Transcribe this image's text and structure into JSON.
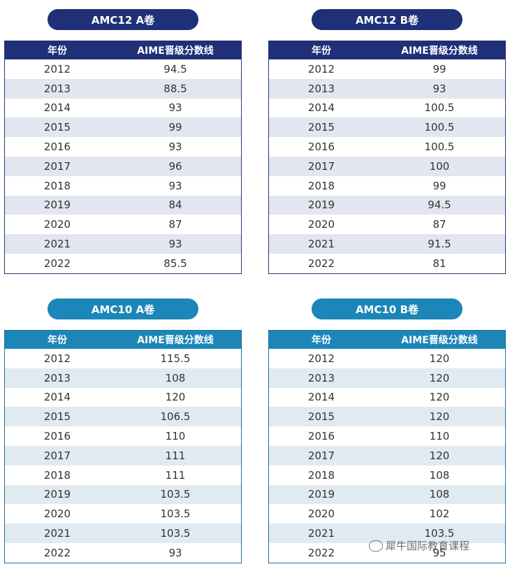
{
  "tables": [
    {
      "title": "AMC12 A卷",
      "col_year": "年份",
      "col_score": "AIME晋级分数线",
      "rows": [
        [
          "2012",
          "94.5"
        ],
        [
          "2013",
          "88.5"
        ],
        [
          "2014",
          "93"
        ],
        [
          "2015",
          "99"
        ],
        [
          "2016",
          "93"
        ],
        [
          "2017",
          "96"
        ],
        [
          "2018",
          "93"
        ],
        [
          "2019",
          "84"
        ],
        [
          "2020",
          "87"
        ],
        [
          "2021",
          "93"
        ],
        [
          "2022",
          "85.5"
        ]
      ]
    },
    {
      "title": "AMC12 B卷",
      "col_year": "年份",
      "col_score": "AIME晋级分数线",
      "rows": [
        [
          "2012",
          "99"
        ],
        [
          "2013",
          "93"
        ],
        [
          "2014",
          "100.5"
        ],
        [
          "2015",
          "100.5"
        ],
        [
          "2016",
          "100.5"
        ],
        [
          "2017",
          "100"
        ],
        [
          "2018",
          "99"
        ],
        [
          "2019",
          "94.5"
        ],
        [
          "2020",
          "87"
        ],
        [
          "2021",
          "91.5"
        ],
        [
          "2022",
          "81"
        ]
      ]
    },
    {
      "title": "AMC10 A卷",
      "col_year": "年份",
      "col_score": "AIME晋级分数线",
      "rows": [
        [
          "2012",
          "115.5"
        ],
        [
          "2013",
          "108"
        ],
        [
          "2014",
          "120"
        ],
        [
          "2015",
          "106.5"
        ],
        [
          "2016",
          "110"
        ],
        [
          "2017",
          "111"
        ],
        [
          "2018",
          "111"
        ],
        [
          "2019",
          "103.5"
        ],
        [
          "2020",
          "103.5"
        ],
        [
          "2021",
          "103.5"
        ],
        [
          "2022",
          "93"
        ]
      ]
    },
    {
      "title": "AMC10 B卷",
      "col_year": "年份",
      "col_score": "AIME晋级分数线",
      "rows": [
        [
          "2012",
          "120"
        ],
        [
          "2013",
          "120"
        ],
        [
          "2014",
          "120"
        ],
        [
          "2015",
          "120"
        ],
        [
          "2016",
          "110"
        ],
        [
          "2017",
          "120"
        ],
        [
          "2018",
          "108"
        ],
        [
          "2019",
          "108"
        ],
        [
          "2020",
          "102"
        ],
        [
          "2021",
          "103.5"
        ],
        [
          "2022",
          "95"
        ]
      ]
    }
  ],
  "watermark": "犀牛国际教育课程",
  "colors": {
    "navy": "#1f2f78",
    "teal": "#1b86b7"
  }
}
